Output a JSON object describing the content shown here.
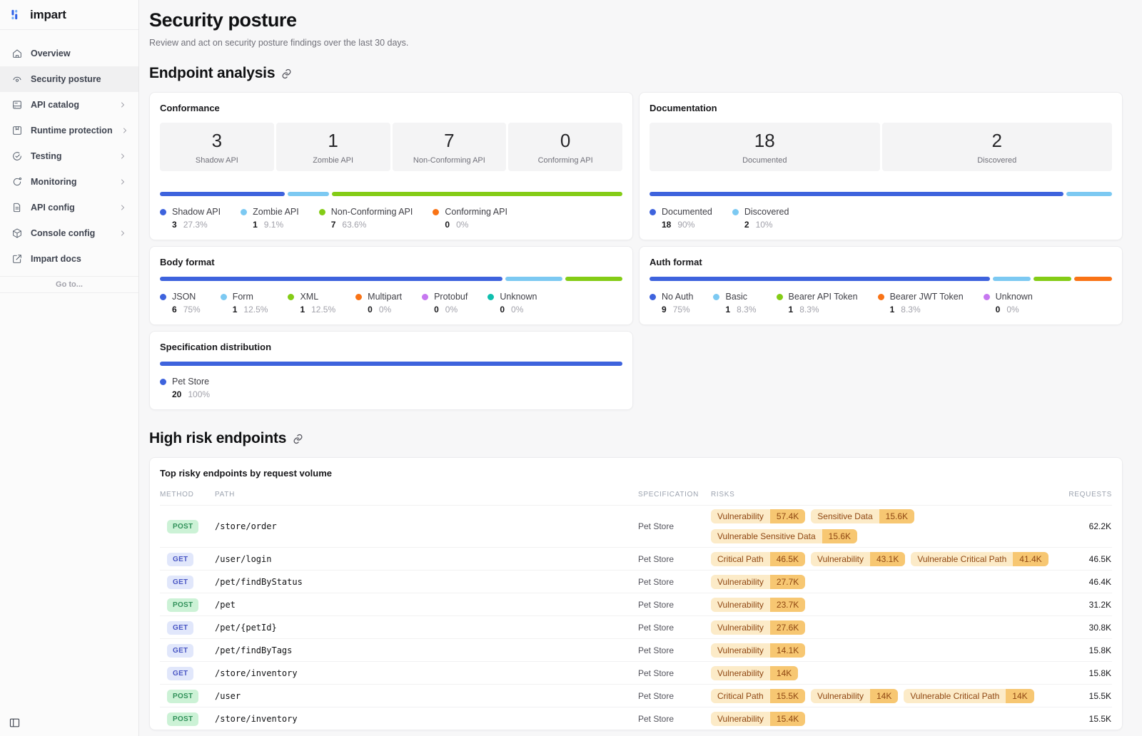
{
  "app": {
    "logo_text": "impart"
  },
  "sidebar": {
    "items": [
      {
        "label": "Overview",
        "icon": "overview",
        "active": false,
        "chevron": false
      },
      {
        "label": "Security posture",
        "icon": "security-posture",
        "active": true,
        "chevron": false
      },
      {
        "label": "API catalog",
        "icon": "api-catalog",
        "active": false,
        "chevron": true
      },
      {
        "label": "Runtime protection",
        "icon": "runtime-protection",
        "active": false,
        "chevron": true
      },
      {
        "label": "Testing",
        "icon": "testing",
        "active": false,
        "chevron": true
      },
      {
        "label": "Monitoring",
        "icon": "monitoring",
        "active": false,
        "chevron": true
      },
      {
        "label": "API config",
        "icon": "api-config",
        "active": false,
        "chevron": true
      },
      {
        "label": "Console config",
        "icon": "console-config",
        "active": false,
        "chevron": true
      },
      {
        "label": "Impart docs",
        "icon": "external-link",
        "active": false,
        "chevron": false
      }
    ],
    "goto_label": "Go to..."
  },
  "page": {
    "title": "Security posture",
    "subtitle": "Review and act on security posture findings over the last 30 days."
  },
  "colors": {
    "blue": "#3e63dd",
    "light_blue": "#7cc9f2",
    "green": "#84cc16",
    "orange": "#f97316",
    "purple": "#c678f0",
    "teal": "#0fbfae"
  },
  "endpoint_analysis": {
    "title": "Endpoint analysis",
    "cards": [
      {
        "title": "Conformance",
        "stats": [
          {
            "value": "3",
            "label": "Shadow API"
          },
          {
            "value": "1",
            "label": "Zombie API"
          },
          {
            "value": "7",
            "label": "Non-Conforming API"
          },
          {
            "value": "0",
            "label": "Conforming API"
          }
        ],
        "segments": [
          {
            "label": "Shadow API",
            "count": "3",
            "pct": "27.3%",
            "grow": 27.3,
            "color": "blue"
          },
          {
            "label": "Zombie API",
            "count": "1",
            "pct": "9.1%",
            "grow": 9.1,
            "color": "light_blue"
          },
          {
            "label": "Non-Conforming API",
            "count": "7",
            "pct": "63.6%",
            "grow": 63.6,
            "color": "green"
          },
          {
            "label": "Conforming API",
            "count": "0",
            "pct": "0%",
            "grow": 0,
            "color": "orange"
          }
        ]
      },
      {
        "title": "Documentation",
        "stats": [
          {
            "value": "18",
            "label": "Documented"
          },
          {
            "value": "2",
            "label": "Discovered"
          }
        ],
        "segments": [
          {
            "label": "Documented",
            "count": "18",
            "pct": "90%",
            "grow": 90,
            "color": "blue"
          },
          {
            "label": "Discovered",
            "count": "2",
            "pct": "10%",
            "grow": 10,
            "color": "light_blue"
          }
        ]
      },
      {
        "title": "Body format",
        "stats": [],
        "segments": [
          {
            "label": "JSON",
            "count": "6",
            "pct": "75%",
            "grow": 75,
            "color": "blue"
          },
          {
            "label": "Form",
            "count": "1",
            "pct": "12.5%",
            "grow": 12.5,
            "color": "light_blue"
          },
          {
            "label": "XML",
            "count": "1",
            "pct": "12.5%",
            "grow": 12.5,
            "color": "green"
          },
          {
            "label": "Multipart",
            "count": "0",
            "pct": "0%",
            "grow": 0,
            "color": "orange"
          },
          {
            "label": "Protobuf",
            "count": "0",
            "pct": "0%",
            "grow": 0,
            "color": "purple"
          },
          {
            "label": "Unknown",
            "count": "0",
            "pct": "0%",
            "grow": 0,
            "color": "teal"
          }
        ]
      },
      {
        "title": "Auth format",
        "stats": [],
        "segments": [
          {
            "label": "No Auth",
            "count": "9",
            "pct": "75%",
            "grow": 75,
            "color": "blue"
          },
          {
            "label": "Basic",
            "count": "1",
            "pct": "8.3%",
            "grow": 8.3,
            "color": "light_blue"
          },
          {
            "label": "Bearer API Token",
            "count": "1",
            "pct": "8.3%",
            "grow": 8.3,
            "color": "green"
          },
          {
            "label": "Bearer JWT Token",
            "count": "1",
            "pct": "8.3%",
            "grow": 8.3,
            "color": "orange"
          },
          {
            "label": "Unknown",
            "count": "0",
            "pct": "0%",
            "grow": 0,
            "color": "purple"
          }
        ]
      },
      {
        "title": "Specification distribution",
        "stats": [],
        "segments": [
          {
            "label": "Pet Store",
            "count": "20",
            "pct": "100%",
            "grow": 100,
            "color": "blue"
          }
        ]
      }
    ]
  },
  "high_risk": {
    "title": "High risk endpoints",
    "table": {
      "card_title": "Top risky endpoints by request volume",
      "columns": [
        "Method",
        "Path",
        "Specification",
        "Risks",
        "Requests"
      ],
      "rows": [
        {
          "method": "POST",
          "path": "/store/order",
          "spec": "Pet Store",
          "risks": [
            {
              "label": "Vulnerability",
              "value": "57.4K"
            },
            {
              "label": "Sensitive Data",
              "value": "15.6K"
            },
            {
              "label": "Vulnerable Sensitive Data",
              "value": "15.6K"
            }
          ],
          "requests": "62.2K"
        },
        {
          "method": "GET",
          "path": "/user/login",
          "spec": "Pet Store",
          "risks": [
            {
              "label": "Critical Path",
              "value": "46.5K"
            },
            {
              "label": "Vulnerability",
              "value": "43.1K"
            },
            {
              "label": "Vulnerable Critical Path",
              "value": "41.4K"
            }
          ],
          "requests": "46.5K"
        },
        {
          "method": "GET",
          "path": "/pet/findByStatus",
          "spec": "Pet Store",
          "risks": [
            {
              "label": "Vulnerability",
              "value": "27.7K"
            }
          ],
          "requests": "46.4K"
        },
        {
          "method": "POST",
          "path": "/pet",
          "spec": "Pet Store",
          "risks": [
            {
              "label": "Vulnerability",
              "value": "23.7K"
            }
          ],
          "requests": "31.2K"
        },
        {
          "method": "GET",
          "path": "/pet/{petId}",
          "spec": "Pet Store",
          "risks": [
            {
              "label": "Vulnerability",
              "value": "27.6K"
            }
          ],
          "requests": "30.8K"
        },
        {
          "method": "GET",
          "path": "/pet/findByTags",
          "spec": "Pet Store",
          "risks": [
            {
              "label": "Vulnerability",
              "value": "14.1K"
            }
          ],
          "requests": "15.8K"
        },
        {
          "method": "GET",
          "path": "/store/inventory",
          "spec": "Pet Store",
          "risks": [
            {
              "label": "Vulnerability",
              "value": "14K"
            }
          ],
          "requests": "15.8K"
        },
        {
          "method": "POST",
          "path": "/user",
          "spec": "Pet Store",
          "risks": [
            {
              "label": "Critical Path",
              "value": "15.5K"
            },
            {
              "label": "Vulnerability",
              "value": "14K"
            },
            {
              "label": "Vulnerable Critical Path",
              "value": "14K"
            }
          ],
          "requests": "15.5K"
        },
        {
          "method": "POST",
          "path": "/store/inventory",
          "spec": "Pet Store",
          "risks": [
            {
              "label": "Vulnerability",
              "value": "15.4K"
            }
          ],
          "requests": "15.5K"
        }
      ]
    }
  }
}
